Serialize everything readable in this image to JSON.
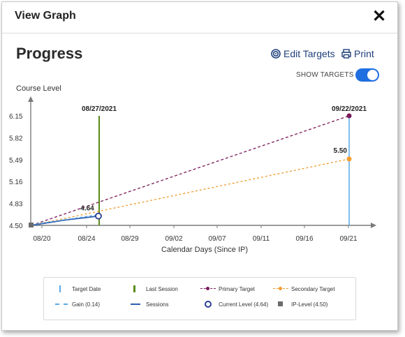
{
  "dialog": {
    "title": "View Graph",
    "close_label": "✕"
  },
  "header": {
    "title": "Progress",
    "edit_targets_label": "Edit Targets",
    "print_label": "Print",
    "show_targets_label": "SHOW TARGETS",
    "show_targets_on": true
  },
  "chart_data": {
    "type": "line",
    "ylabel": "Course Level",
    "xlabel": "Calendar Days (Since IP)",
    "y_ticks": [
      "6.15",
      "5.82",
      "5.49",
      "5.16",
      "4.83",
      "4.50"
    ],
    "x_ticks": [
      "08/20",
      "08/24",
      "08/29",
      "09/02",
      "09/07",
      "09/11",
      "09/16",
      "09/21"
    ],
    "ylim": [
      4.5,
      6.15
    ],
    "ip_level": {
      "date": "08/20",
      "value": 4.5
    },
    "last_session": {
      "date": "08/27/2021",
      "label": "08/27/2021"
    },
    "target_date": {
      "date": "09/22/2021",
      "label": "09/22/2021"
    },
    "current_level": {
      "date": "08/26",
      "value": 4.64,
      "label": "4.64"
    },
    "primary_target": {
      "start": 4.5,
      "end": 6.15
    },
    "secondary_target": {
      "start": 4.5,
      "end": 5.5,
      "end_label": "5.50"
    },
    "sessions_values": [
      4.5,
      4.58,
      4.64
    ],
    "gain_values": [
      4.5,
      4.64
    ],
    "colors": {
      "axis": "#7a7a7a",
      "last_session": "#5a8a1a",
      "target_date": "#5aa9e6",
      "primary": "#7a1a5a",
      "secondary": "#f29a2e",
      "sessions": "#2a5db0",
      "gain": "#5aa9e6",
      "current": "#2a3f8f",
      "ip": "#6b6b6b"
    }
  },
  "legend": [
    {
      "name": "Target Date",
      "icon": "target-date-bar"
    },
    {
      "name": "Last Session",
      "icon": "last-session-bar"
    },
    {
      "name": "Primary Target",
      "icon": "primary-target-dot"
    },
    {
      "name": "Secondary Target",
      "icon": "secondary-target-dot"
    },
    {
      "name": "Gain (0.14)",
      "icon": "gain-dash"
    },
    {
      "name": "Sessions",
      "icon": "sessions-line"
    },
    {
      "name": "Current Level (4.64)",
      "icon": "current-level-circle"
    },
    {
      "name": "IP-Level (4.50)",
      "icon": "ip-level-square"
    }
  ]
}
